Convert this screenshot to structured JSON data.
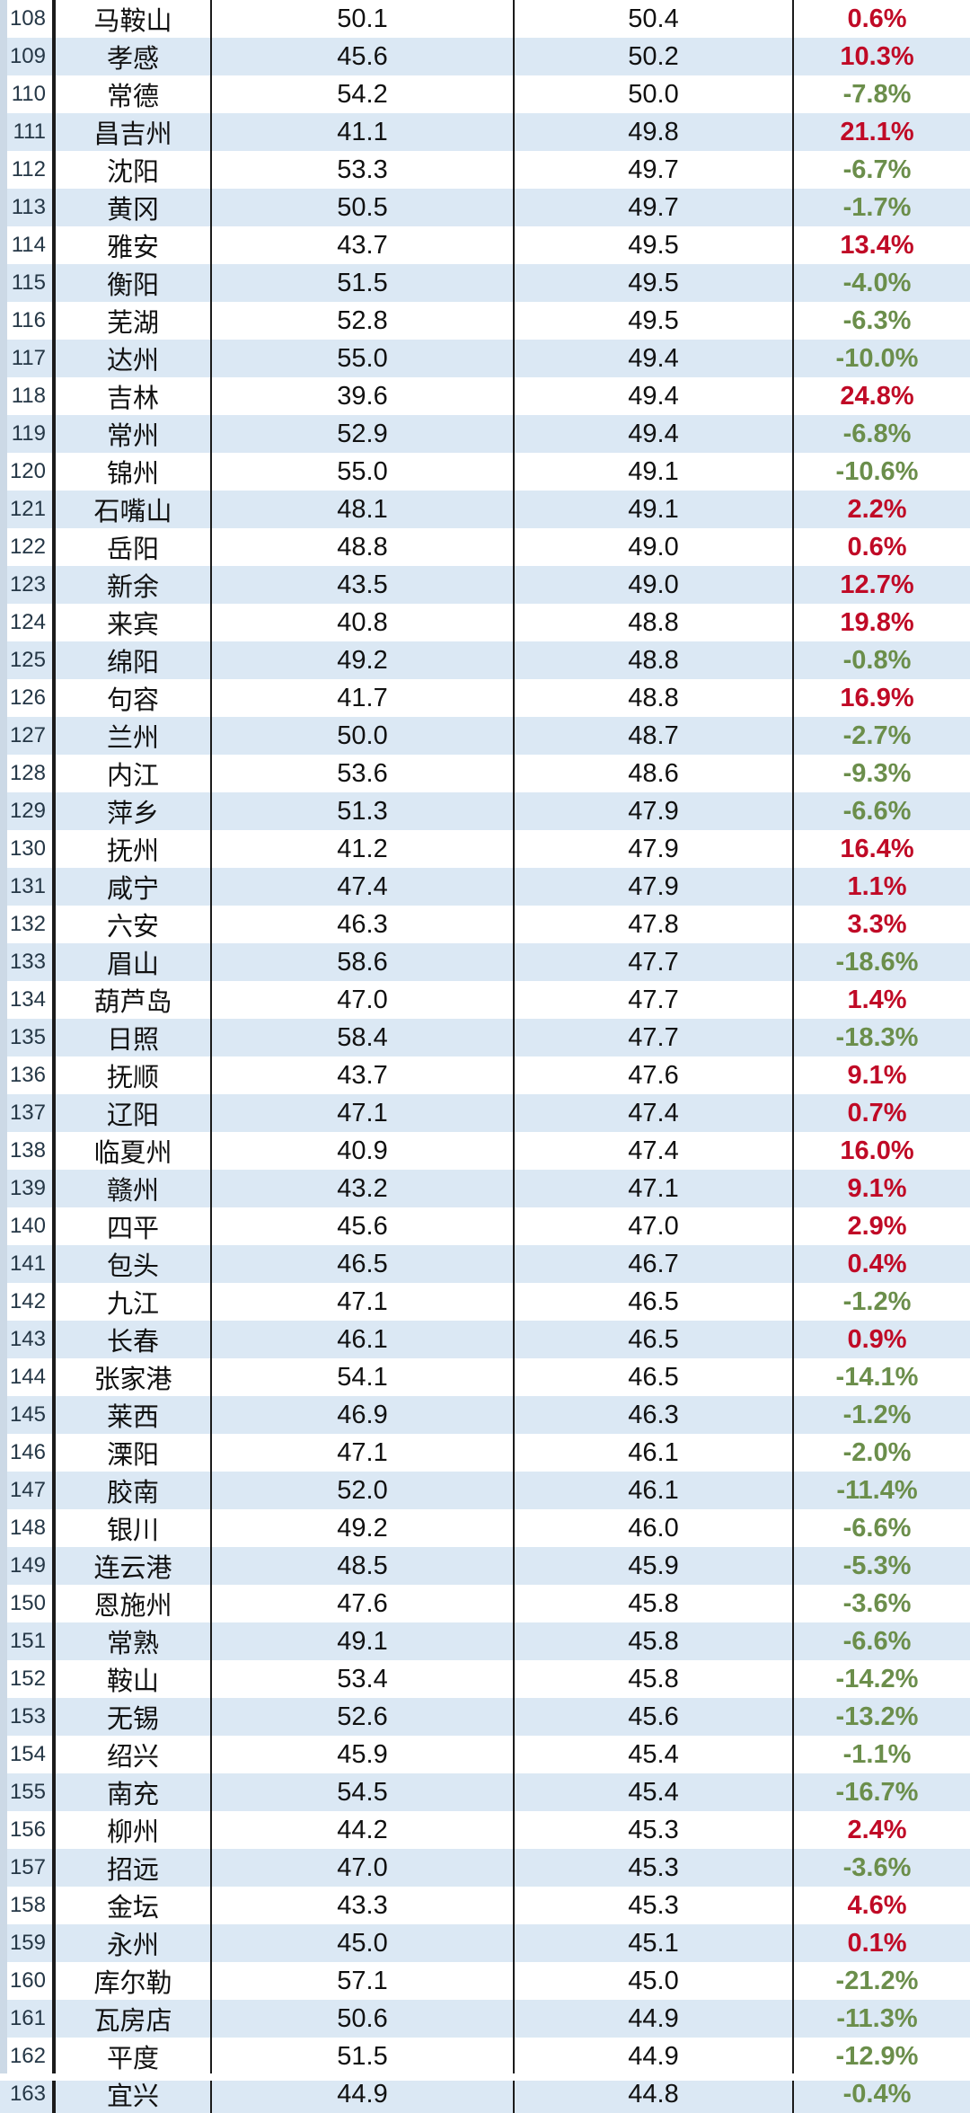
{
  "colors": {
    "stripe_blue": "#dbe8f4",
    "row_white": "#ffffff",
    "positive_red": "#c00a26",
    "negative_green": "#6b8e4b",
    "grid_line": "#1b1b1b",
    "rank_text": "#253746",
    "left_edge_strip": "#ccd9e6"
  },
  "chart_data": {
    "type": "table",
    "columns": [
      "rank",
      "city",
      "value_a",
      "value_b",
      "change_pct"
    ],
    "rows": [
      {
        "rank": "108",
        "city": "马鞍山",
        "v1": "50.1",
        "v2": "50.4",
        "pct": "0.6%",
        "trend": "up"
      },
      {
        "rank": "109",
        "city": "孝感",
        "v1": "45.6",
        "v2": "50.2",
        "pct": "10.3%",
        "trend": "up"
      },
      {
        "rank": "110",
        "city": "常德",
        "v1": "54.2",
        "v2": "50.0",
        "pct": "-7.8%",
        "trend": "down"
      },
      {
        "rank": "111",
        "city": "昌吉州",
        "v1": "41.1",
        "v2": "49.8",
        "pct": "21.1%",
        "trend": "up"
      },
      {
        "rank": "112",
        "city": "沈阳",
        "v1": "53.3",
        "v2": "49.7",
        "pct": "-6.7%",
        "trend": "down"
      },
      {
        "rank": "113",
        "city": "黄冈",
        "v1": "50.5",
        "v2": "49.7",
        "pct": "-1.7%",
        "trend": "down"
      },
      {
        "rank": "114",
        "city": "雅安",
        "v1": "43.7",
        "v2": "49.5",
        "pct": "13.4%",
        "trend": "up"
      },
      {
        "rank": "115",
        "city": "衡阳",
        "v1": "51.5",
        "v2": "49.5",
        "pct": "-4.0%",
        "trend": "down"
      },
      {
        "rank": "116",
        "city": "芜湖",
        "v1": "52.8",
        "v2": "49.5",
        "pct": "-6.3%",
        "trend": "down"
      },
      {
        "rank": "117",
        "city": "达州",
        "v1": "55.0",
        "v2": "49.4",
        "pct": "-10.0%",
        "trend": "down"
      },
      {
        "rank": "118",
        "city": "吉林",
        "v1": "39.6",
        "v2": "49.4",
        "pct": "24.8%",
        "trend": "up"
      },
      {
        "rank": "119",
        "city": "常州",
        "v1": "52.9",
        "v2": "49.4",
        "pct": "-6.8%",
        "trend": "down"
      },
      {
        "rank": "120",
        "city": "锦州",
        "v1": "55.0",
        "v2": "49.1",
        "pct": "-10.6%",
        "trend": "down"
      },
      {
        "rank": "121",
        "city": "石嘴山",
        "v1": "48.1",
        "v2": "49.1",
        "pct": "2.2%",
        "trend": "up"
      },
      {
        "rank": "122",
        "city": "岳阳",
        "v1": "48.8",
        "v2": "49.0",
        "pct": "0.6%",
        "trend": "up"
      },
      {
        "rank": "123",
        "city": "新余",
        "v1": "43.5",
        "v2": "49.0",
        "pct": "12.7%",
        "trend": "up"
      },
      {
        "rank": "124",
        "city": "来宾",
        "v1": "40.8",
        "v2": "48.8",
        "pct": "19.8%",
        "trend": "up"
      },
      {
        "rank": "125",
        "city": "绵阳",
        "v1": "49.2",
        "v2": "48.8",
        "pct": "-0.8%",
        "trend": "down"
      },
      {
        "rank": "126",
        "city": "句容",
        "v1": "41.7",
        "v2": "48.8",
        "pct": "16.9%",
        "trend": "up"
      },
      {
        "rank": "127",
        "city": "兰州",
        "v1": "50.0",
        "v2": "48.7",
        "pct": "-2.7%",
        "trend": "down"
      },
      {
        "rank": "128",
        "city": "内江",
        "v1": "53.6",
        "v2": "48.6",
        "pct": "-9.3%",
        "trend": "down"
      },
      {
        "rank": "129",
        "city": "萍乡",
        "v1": "51.3",
        "v2": "47.9",
        "pct": "-6.6%",
        "trend": "down"
      },
      {
        "rank": "130",
        "city": "抚州",
        "v1": "41.2",
        "v2": "47.9",
        "pct": "16.4%",
        "trend": "up"
      },
      {
        "rank": "131",
        "city": "咸宁",
        "v1": "47.4",
        "v2": "47.9",
        "pct": "1.1%",
        "trend": "up"
      },
      {
        "rank": "132",
        "city": "六安",
        "v1": "46.3",
        "v2": "47.8",
        "pct": "3.3%",
        "trend": "up"
      },
      {
        "rank": "133",
        "city": "眉山",
        "v1": "58.6",
        "v2": "47.7",
        "pct": "-18.6%",
        "trend": "down"
      },
      {
        "rank": "134",
        "city": "葫芦岛",
        "v1": "47.0",
        "v2": "47.7",
        "pct": "1.4%",
        "trend": "up"
      },
      {
        "rank": "135",
        "city": "日照",
        "v1": "58.4",
        "v2": "47.7",
        "pct": "-18.3%",
        "trend": "down"
      },
      {
        "rank": "136",
        "city": "抚顺",
        "v1": "43.7",
        "v2": "47.6",
        "pct": "9.1%",
        "trend": "up"
      },
      {
        "rank": "137",
        "city": "辽阳",
        "v1": "47.1",
        "v2": "47.4",
        "pct": "0.7%",
        "trend": "up"
      },
      {
        "rank": "138",
        "city": "临夏州",
        "v1": "40.9",
        "v2": "47.4",
        "pct": "16.0%",
        "trend": "up"
      },
      {
        "rank": "139",
        "city": "赣州",
        "v1": "43.2",
        "v2": "47.1",
        "pct": "9.1%",
        "trend": "up"
      },
      {
        "rank": "140",
        "city": "四平",
        "v1": "45.6",
        "v2": "47.0",
        "pct": "2.9%",
        "trend": "up"
      },
      {
        "rank": "141",
        "city": "包头",
        "v1": "46.5",
        "v2": "46.7",
        "pct": "0.4%",
        "trend": "up"
      },
      {
        "rank": "142",
        "city": "九江",
        "v1": "47.1",
        "v2": "46.5",
        "pct": "-1.2%",
        "trend": "down"
      },
      {
        "rank": "143",
        "city": "长春",
        "v1": "46.1",
        "v2": "46.5",
        "pct": "0.9%",
        "trend": "up"
      },
      {
        "rank": "144",
        "city": "张家港",
        "v1": "54.1",
        "v2": "46.5",
        "pct": "-14.1%",
        "trend": "down"
      },
      {
        "rank": "145",
        "city": "莱西",
        "v1": "46.9",
        "v2": "46.3",
        "pct": "-1.2%",
        "trend": "down"
      },
      {
        "rank": "146",
        "city": "溧阳",
        "v1": "47.1",
        "v2": "46.1",
        "pct": "-2.0%",
        "trend": "down"
      },
      {
        "rank": "147",
        "city": "胶南",
        "v1": "52.0",
        "v2": "46.1",
        "pct": "-11.4%",
        "trend": "down"
      },
      {
        "rank": "148",
        "city": "银川",
        "v1": "49.2",
        "v2": "46.0",
        "pct": "-6.6%",
        "trend": "down"
      },
      {
        "rank": "149",
        "city": "连云港",
        "v1": "48.5",
        "v2": "45.9",
        "pct": "-5.3%",
        "trend": "down"
      },
      {
        "rank": "150",
        "city": "恩施州",
        "v1": "47.6",
        "v2": "45.8",
        "pct": "-3.6%",
        "trend": "down"
      },
      {
        "rank": "151",
        "city": "常熟",
        "v1": "49.1",
        "v2": "45.8",
        "pct": "-6.6%",
        "trend": "down"
      },
      {
        "rank": "152",
        "city": "鞍山",
        "v1": "53.4",
        "v2": "45.8",
        "pct": "-14.2%",
        "trend": "down"
      },
      {
        "rank": "153",
        "city": "无锡",
        "v1": "52.6",
        "v2": "45.6",
        "pct": "-13.2%",
        "trend": "down"
      },
      {
        "rank": "154",
        "city": "绍兴",
        "v1": "45.9",
        "v2": "45.4",
        "pct": "-1.1%",
        "trend": "down"
      },
      {
        "rank": "155",
        "city": "南充",
        "v1": "54.5",
        "v2": "45.4",
        "pct": "-16.7%",
        "trend": "down"
      },
      {
        "rank": "156",
        "city": "柳州",
        "v1": "44.2",
        "v2": "45.3",
        "pct": "2.4%",
        "trend": "up"
      },
      {
        "rank": "157",
        "city": "招远",
        "v1": "47.0",
        "v2": "45.3",
        "pct": "-3.6%",
        "trend": "down"
      },
      {
        "rank": "158",
        "city": "金坛",
        "v1": "43.3",
        "v2": "45.3",
        "pct": "4.6%",
        "trend": "up"
      },
      {
        "rank": "159",
        "city": "永州",
        "v1": "45.0",
        "v2": "45.1",
        "pct": "0.1%",
        "trend": "up"
      },
      {
        "rank": "160",
        "city": "库尔勒",
        "v1": "57.1",
        "v2": "45.0",
        "pct": "-21.2%",
        "trend": "down"
      },
      {
        "rank": "161",
        "city": "瓦房店",
        "v1": "50.6",
        "v2": "44.9",
        "pct": "-11.3%",
        "trend": "down"
      },
      {
        "rank": "162",
        "city": "平度",
        "v1": "51.5",
        "v2": "44.9",
        "pct": "-12.9%",
        "trend": "down"
      },
      {
        "rank": "163",
        "city": "宜兴",
        "v1": "44.9",
        "v2": "44.8",
        "pct": "-0.4%",
        "trend": "down"
      }
    ]
  }
}
